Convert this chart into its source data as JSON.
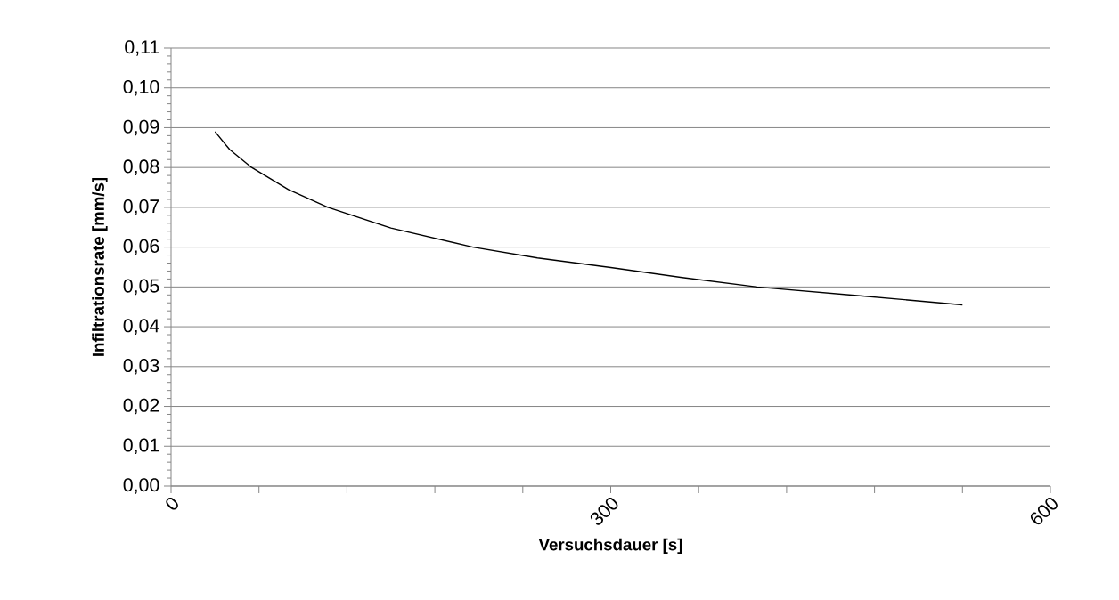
{
  "chart_data": {
    "type": "line",
    "xlabel": "Versuchsdauer [s]",
    "ylabel": "Infiltrationsrate [mm/s]",
    "x": [
      30,
      40,
      55,
      80,
      107,
      150,
      206,
      250,
      300,
      350,
      400,
      470,
      540
    ],
    "values": [
      0.089,
      0.0845,
      0.08,
      0.0745,
      0.07,
      0.0648,
      0.06,
      0.0573,
      0.0549,
      0.0523,
      0.05,
      0.0478,
      0.0455
    ],
    "color": "#000000",
    "xlim": [
      0,
      600
    ],
    "xticks": [
      0,
      {
        "value": 60,
        "label": null
      },
      {
        "value": 120,
        "label": null
      },
      {
        "value": 180,
        "label": null
      },
      {
        "value": 240,
        "label": null
      },
      300,
      {
        "value": 360,
        "label": null
      },
      {
        "value": 420,
        "label": null
      },
      {
        "value": 480,
        "label": null
      },
      {
        "value": 540,
        "label": null
      },
      600
    ],
    "ylim": [
      0,
      0.11
    ],
    "yticks": [
      {
        "value": 0,
        "label": "0,00"
      },
      {
        "value": 0.01,
        "label": "0,01"
      },
      {
        "value": 0.02,
        "label": "0,02"
      },
      {
        "value": 0.03,
        "label": "0,03"
      },
      {
        "value": 0.04,
        "label": "0,04"
      },
      {
        "value": 0.05,
        "label": "0,05"
      },
      {
        "value": 0.06,
        "label": "0,06"
      },
      {
        "value": 0.07,
        "label": "0,07"
      },
      {
        "value": 0.08,
        "label": "0,08"
      },
      {
        "value": 0.09,
        "label": "0,09"
      },
      {
        "value": 0.1,
        "label": "0,10"
      },
      {
        "value": 0.11,
        "label": "0,11"
      }
    ],
    "grid": "y"
  }
}
